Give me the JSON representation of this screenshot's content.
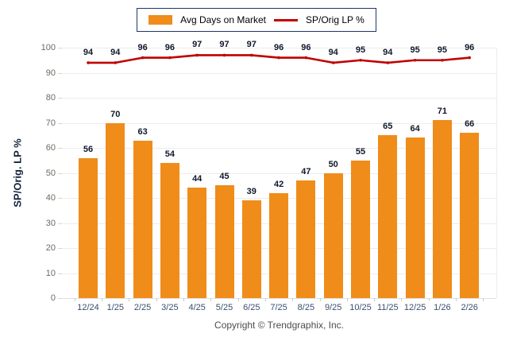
{
  "legend": {
    "bar_label": "Avg Days on Market",
    "line_label": "SP/Orig LP %"
  },
  "y_axis_title": "SP/Orig. LP %",
  "copyright": "Copyright © Trendgraphix, Inc.",
  "colors": {
    "bar": "#F08C1A",
    "line": "#C00000",
    "grid": "#ececec",
    "x_label": "#3C4E6E",
    "y_label": "#6e6a60",
    "value_label": "#10182b",
    "legend_border": "#1F3864"
  },
  "chart_data": {
    "type": "bar",
    "categories": [
      "12/24",
      "1/25",
      "2/25",
      "3/25",
      "4/25",
      "5/25",
      "6/25",
      "7/25",
      "8/25",
      "9/25",
      "10/25",
      "11/25",
      "12/25",
      "1/26",
      "2/26"
    ],
    "series": [
      {
        "name": "Avg Days on Market",
        "type": "bar",
        "values": [
          56,
          70,
          63,
          54,
          44,
          45,
          39,
          42,
          47,
          50,
          55,
          65,
          64,
          71,
          66
        ]
      },
      {
        "name": "SP/Orig LP %",
        "type": "line",
        "values": [
          94,
          94,
          96,
          96,
          97,
          97,
          97,
          96,
          96,
          94,
          95,
          94,
          95,
          95,
          96
        ]
      }
    ],
    "title": "",
    "xlabel": "",
    "ylabel": "SP/Orig. LP %",
    "ylim": [
      0,
      100
    ],
    "ytick_step": 10,
    "grid": true,
    "legend_position": "top-center",
    "data_labels": true
  }
}
